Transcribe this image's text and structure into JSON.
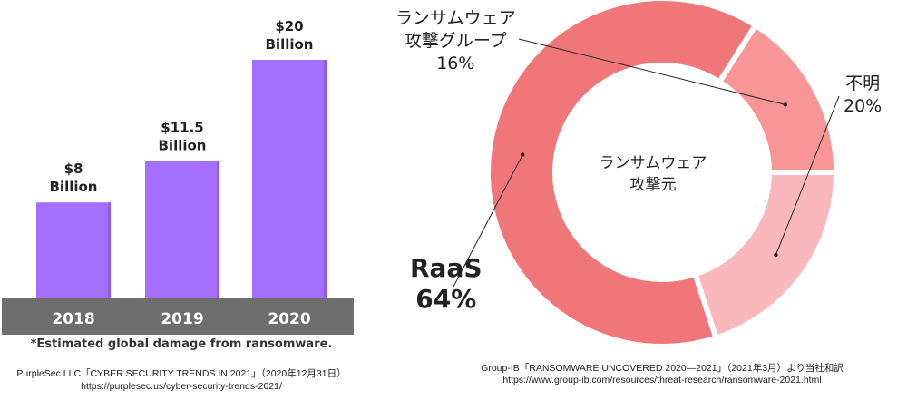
{
  "chart_data": [
    {
      "type": "bar",
      "categories": [
        "2018",
        "2019",
        "2020"
      ],
      "values": [
        8,
        11.5,
        20
      ],
      "value_labels": [
        [
          "$8",
          "Billion"
        ],
        [
          "$11.5",
          "Billion"
        ],
        [
          "$20",
          "Billion"
        ]
      ],
      "note": "*Estimated global damage from ransomware.",
      "source": [
        "PurpleSec LLC「CYBER SECURITY TRENDS IN 2021」（2020年12月31日）",
        "https://purplesec.us/cyber-security-trends-2021/"
      ],
      "colors": {
        "bar": "#a56ffd",
        "axis_band": "#6e6e6e"
      }
    },
    {
      "type": "pie",
      "style": "donut",
      "center_label": [
        "ランサムウェア",
        "攻撃元"
      ],
      "slices": [
        {
          "label": [
            "不明"
          ],
          "percent_label": "20%",
          "value": 20,
          "color": "#fbb8bc"
        },
        {
          "label": [
            "RaaS"
          ],
          "percent_label": "64%",
          "value": 64,
          "color": "#f1767a"
        },
        {
          "label": [
            "ランサムウェア",
            "攻撃グループ"
          ],
          "percent_label": "16%",
          "value": 16,
          "color": "#f79597"
        }
      ],
      "source": [
        "Group-IB「RANSOMWARE UNCOVERED 2020—2021」（2021年3月）より当社和訳",
        "https://www.group-ib.com/resources/threat-research/ransomware-2021.html"
      ]
    }
  ]
}
